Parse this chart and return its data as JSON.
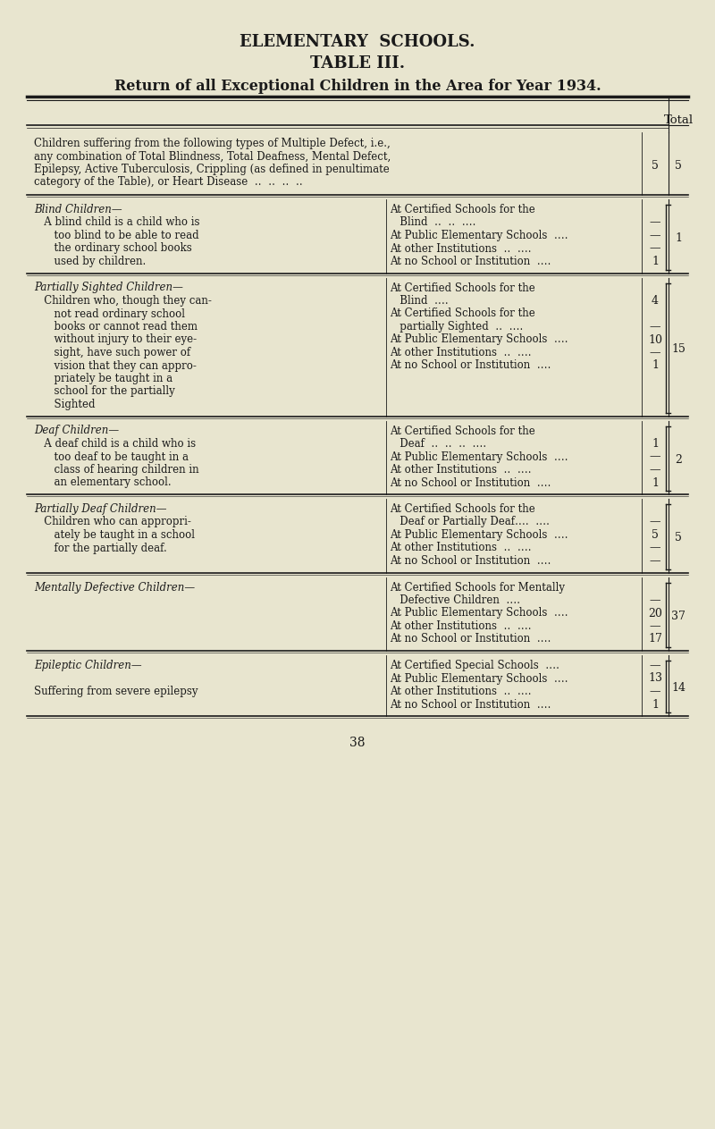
{
  "bg_color": "#e8e5cf",
  "text_color": "#1a1a1a",
  "title1": "ELEMENTARY  SCHOOLS.",
  "title2": "TABLE III.",
  "title3": "Return of all Exceptional Children in the Area for Year 1934.",
  "page_number": "38",
  "col_header": "Total",
  "sections": [
    {
      "left_text": [
        "Children suffering from the following types of Multiple Defect, i.e.,",
        "any combination of Total Blindness, Total Deafness, Mental Defect,",
        "Epilepsy, Active Tuberculosis, Crippling (as defined in penultimate",
        "category of the Table), or Heart Disease  ‥  ‥  ‥  ‥"
      ],
      "right_rows": [],
      "inner_col": "5",
      "total": "5",
      "brace": false,
      "left_italic_rows": []
    },
    {
      "left_text": [
        "Blind Children—",
        "   A blind child is a child who is",
        "      too blind to be able to read",
        "      the ordinary school books",
        "      used by children."
      ],
      "right_rows": [
        [
          "At Certified Schools for the",
          ""
        ],
        [
          "   Blind  ‥  ‥  ‥‥",
          "—"
        ],
        [
          "At Public Elementary Schools  ‥‥",
          "—"
        ],
        [
          "At other Institutions  ‥  ‥‥",
          "—"
        ],
        [
          "At no School or Institution  ‥‥",
          "1"
        ]
      ],
      "inner_col": "",
      "total": "1",
      "brace": true,
      "left_italic_rows": [
        0
      ]
    },
    {
      "left_text": [
        "Partially Sighted Children—",
        "   Children who, though they can-",
        "      not read ordinary school",
        "      books or cannot read them",
        "      without injury to their eye-",
        "      sight, have such power of",
        "      vision that they can appro-",
        "      priately be taught in a",
        "      school for the partially",
        "      Sighted"
      ],
      "right_rows": [
        [
          "At Certified Schools for the",
          ""
        ],
        [
          "   Blind  ‥‥",
          "4"
        ],
        [
          "At Certified Schools for the",
          ""
        ],
        [
          "   partially Sighted  ‥  ‥‥",
          "—"
        ],
        [
          "At Public Elementary Schools  ‥‥",
          "10"
        ],
        [
          "At other Institutions  ‥  ‥‥",
          "—"
        ],
        [
          "At no School or Institution  ‥‥",
          "1"
        ]
      ],
      "inner_col": "",
      "total": "15",
      "brace": true,
      "left_italic_rows": [
        0
      ]
    },
    {
      "left_text": [
        "Deaf Children—",
        "   A deaf child is a child who is",
        "      too deaf to be taught in a",
        "      class of hearing children in",
        "      an elementary school."
      ],
      "right_rows": [
        [
          "At Certified Schools for the",
          ""
        ],
        [
          "   Deaf  ‥  ‥  ‥  ‥‥",
          "1"
        ],
        [
          "At Public Elementary Schools  ‥‥",
          "—"
        ],
        [
          "At other Institutions  ‥  ‥‥",
          "—"
        ],
        [
          "At no School or Institution  ‥‥",
          "1"
        ]
      ],
      "inner_col": "",
      "total": "2",
      "brace": true,
      "left_italic_rows": [
        0
      ]
    },
    {
      "left_text": [
        "Partially Deaf Children—",
        "   Children who can appropri-",
        "      ately be taught in a school",
        "      for the partially deaf."
      ],
      "right_rows": [
        [
          "At Certified Schools for the",
          ""
        ],
        [
          "   Deaf or Partially Deaf‥‥  ‥‥",
          "—"
        ],
        [
          "At Public Elementary Schools  ‥‥",
          "5"
        ],
        [
          "At other Institutions  ‥  ‥‥",
          "—"
        ],
        [
          "At no School or Institution  ‥‥",
          "—"
        ]
      ],
      "inner_col": "",
      "total": "5",
      "brace": true,
      "left_italic_rows": [
        0
      ]
    },
    {
      "left_text": [
        "Mentally Defective Children—"
      ],
      "right_rows": [
        [
          "At Certified Schools for Mentally",
          ""
        ],
        [
          "   Defective Children  ‥‥",
          "—"
        ],
        [
          "At Public Elementary Schools  ‥‥",
          "20"
        ],
        [
          "At other Institutions  ‥  ‥‥",
          "—"
        ],
        [
          "At no School or Institution  ‥‥",
          "17"
        ]
      ],
      "inner_col": "",
      "total": "37",
      "brace": true,
      "left_italic_rows": [
        0
      ]
    },
    {
      "left_text": [
        "Epileptic Children—",
        "",
        "Suffering from severe epilepsy"
      ],
      "right_rows": [
        [
          "At Certified Special Schools  ‥‥",
          "—"
        ],
        [
          "At Public Elementary Schools  ‥‥",
          "13"
        ],
        [
          "At other Institutions  ‥  ‥‥",
          "—"
        ],
        [
          "At no School or Institution  ‥‥",
          "1"
        ]
      ],
      "inner_col": "",
      "total": "14",
      "brace": true,
      "left_italic_rows": [
        0
      ]
    }
  ]
}
